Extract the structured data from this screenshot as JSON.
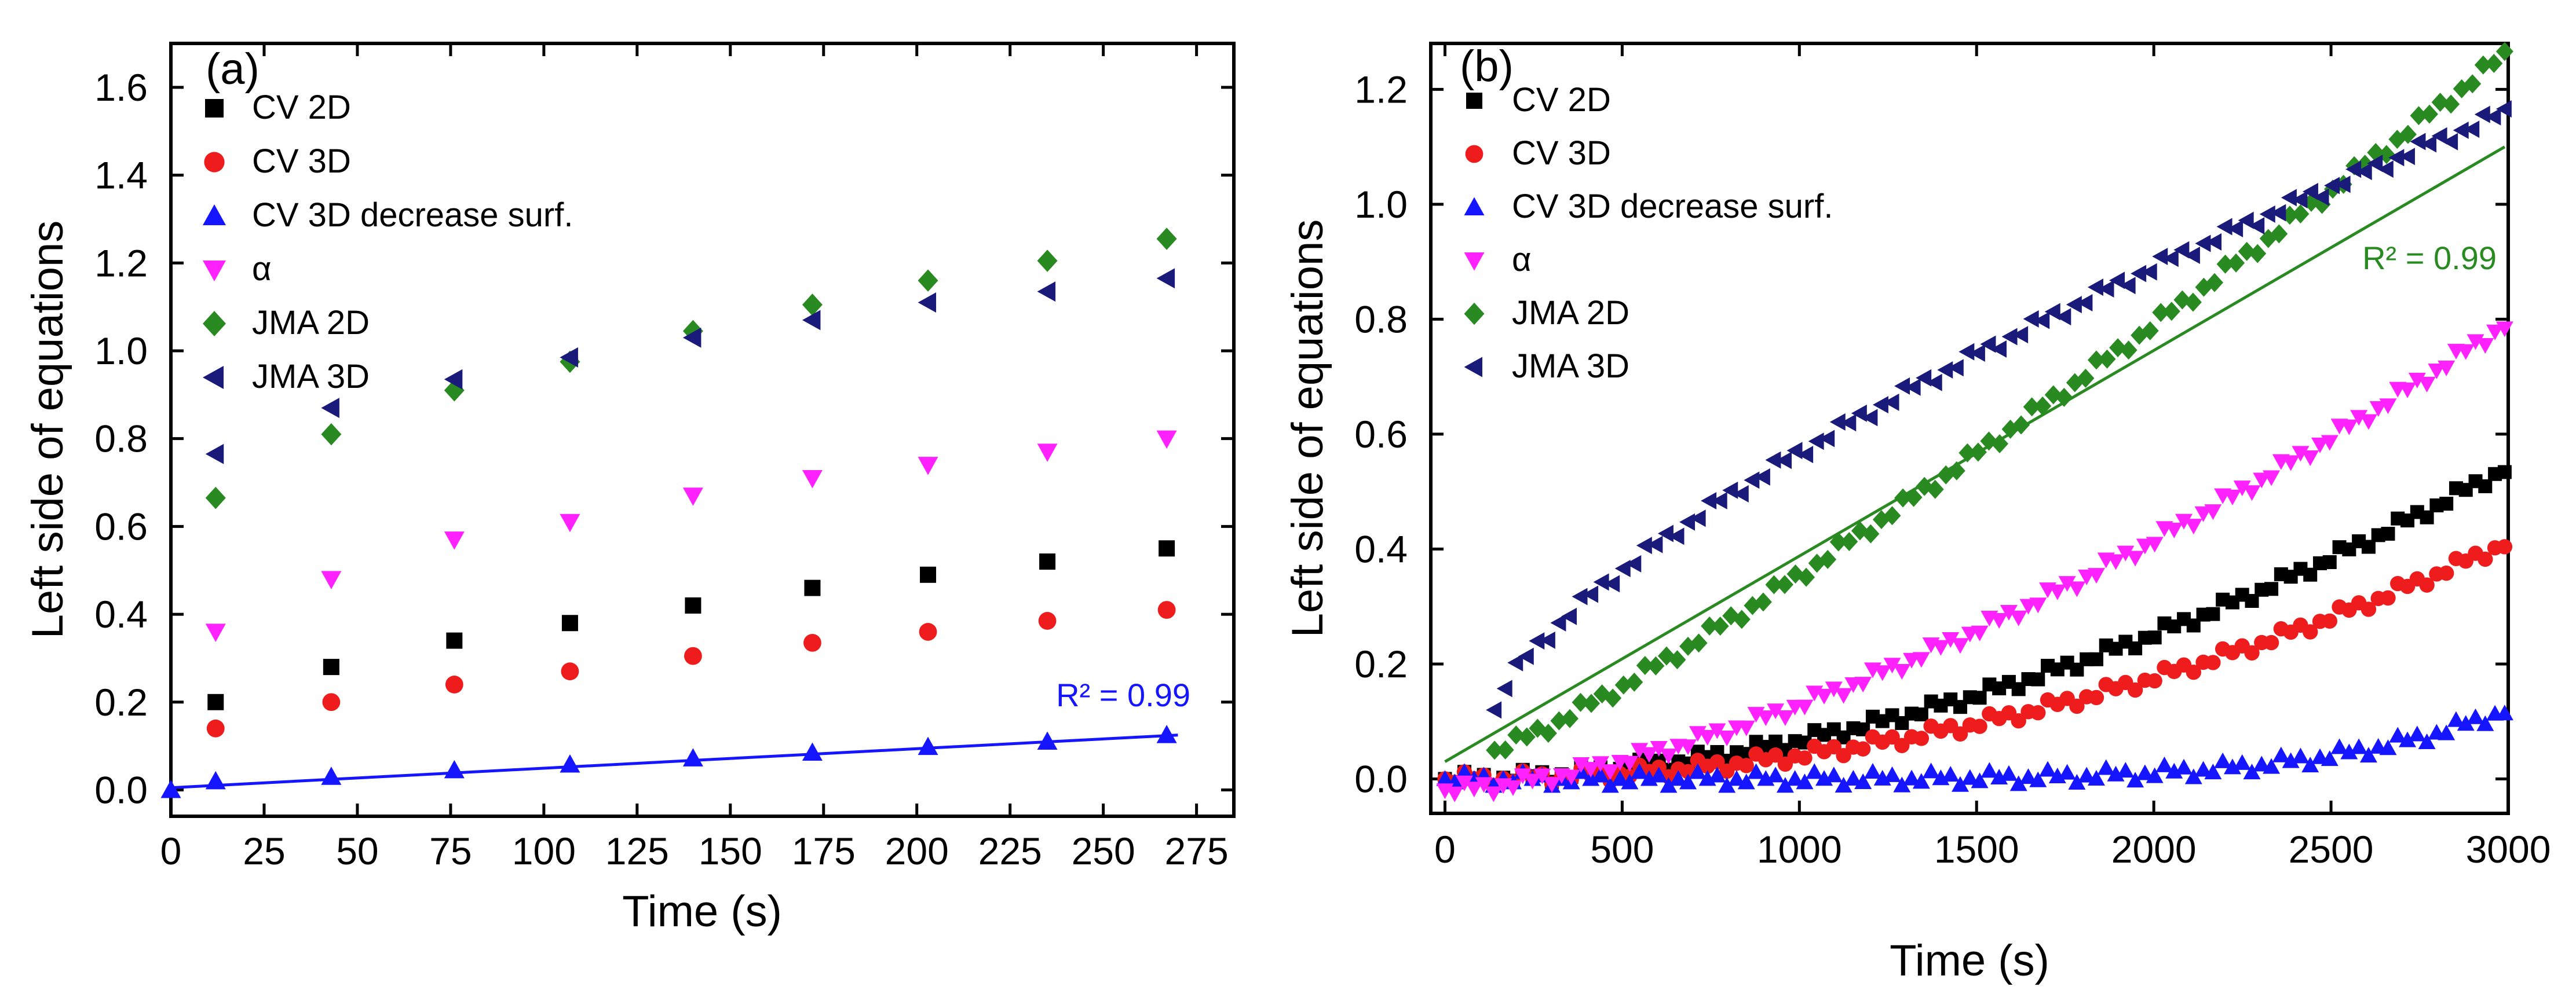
{
  "colors": {
    "cv2d": "#000000",
    "cv3d": "#ee1c1c",
    "cv3d_dec": "#1515ff",
    "alpha": "#ff22ff",
    "jma2d": "#2a8a22",
    "jma3d": "#1a1a7a"
  },
  "chart_data": [
    {
      "type": "scatter",
      "panel_label": "(a)",
      "xlabel": "Time (s)",
      "ylabel": "Left side of equations",
      "xlim": [
        0,
        285
      ],
      "ylim": [
        -0.06,
        1.7
      ],
      "xticks": [
        "0",
        "25",
        "50",
        "75",
        "100",
        "125",
        "150",
        "175",
        "200",
        "225",
        "250",
        "275"
      ],
      "yticks": [
        "0.0",
        "0.2",
        "0.4",
        "0.6",
        "0.8",
        "1.0",
        "1.2",
        "1.4",
        "1.6"
      ],
      "legend_position": "top-left",
      "x": [
        12,
        43,
        76,
        107,
        140,
        172,
        203,
        235,
        267
      ],
      "series": [
        {
          "name": "CV 2D",
          "marker": "square",
          "color_key": "cv2d",
          "values": [
            0.2,
            0.28,
            0.34,
            0.38,
            0.42,
            0.46,
            0.49,
            0.52,
            0.55
          ]
        },
        {
          "name": "CV 3D",
          "marker": "circle",
          "color_key": "cv3d",
          "values": [
            0.14,
            0.2,
            0.24,
            0.27,
            0.305,
            0.335,
            0.36,
            0.385,
            0.41
          ]
        },
        {
          "name": "CV 3D decrease surf.",
          "marker": "triangle-up",
          "color_key": "cv3d_dec",
          "values": [
            0.02,
            0.03,
            0.045,
            0.058,
            0.072,
            0.085,
            0.098,
            0.11,
            0.125
          ],
          "extra_points": [
            [
              0,
              0.0
            ]
          ]
        },
        {
          "name": "α",
          "marker": "triangle-down",
          "color_key": "alpha",
          "values": [
            0.36,
            0.48,
            0.57,
            0.61,
            0.67,
            0.71,
            0.74,
            0.77,
            0.8
          ]
        },
        {
          "name": "JMA 2D",
          "marker": "diamond",
          "color_key": "jma2d",
          "values": [
            0.665,
            0.81,
            0.91,
            0.975,
            1.045,
            1.105,
            1.16,
            1.205,
            1.255
          ]
        },
        {
          "name": "JMA 3D",
          "marker": "triangle-left",
          "color_key": "jma3d",
          "values": [
            0.765,
            0.87,
            0.935,
            0.985,
            1.03,
            1.07,
            1.11,
            1.135,
            1.165
          ]
        }
      ],
      "fit": {
        "series": "CV 3D decrease surf.",
        "x": [
          0,
          270
        ],
        "y": [
          0.005,
          0.125
        ],
        "label": "R² = 0.99"
      }
    },
    {
      "type": "scatter",
      "panel_label": "(b)",
      "xlabel": "Time (s)",
      "ylabel": "Left side of equations",
      "xlim": [
        -40,
        3000
      ],
      "ylim": [
        -0.06,
        1.28
      ],
      "xticks": [
        "0",
        "500",
        "1000",
        "1500",
        "2000",
        "2500",
        "3000"
      ],
      "yticks": [
        "0.0",
        "0.2",
        "0.4",
        "0.6",
        "0.8",
        "1.0",
        "1.2"
      ],
      "legend_position": "top-left",
      "series": [
        {
          "name": "CV 2D",
          "marker": "square",
          "color_key": "cv2d",
          "start": [
            0,
            0.0
          ],
          "end": [
            2990,
            0.54
          ],
          "exp": 1.9,
          "count": 110
        },
        {
          "name": "CV 3D",
          "marker": "circle",
          "color_key": "cv3d",
          "start": [
            0,
            0.0
          ],
          "end": [
            2990,
            0.41
          ],
          "exp": 2.1,
          "count": 110
        },
        {
          "name": "CV 3D decrease surf.",
          "marker": "triangle-up",
          "color_key": "cv3d_dec",
          "start": [
            0,
            0.0
          ],
          "end": [
            2990,
            0.12
          ],
          "exp": 6.0,
          "count": 110
        },
        {
          "name": "α",
          "marker": "triangle-down",
          "color_key": "alpha",
          "start": [
            0,
            -0.02
          ],
          "end": [
            2990,
            0.79
          ],
          "exp": 1.55,
          "count": 110
        },
        {
          "name": "JMA 2D",
          "marker": "diamond",
          "color_key": "jma2d",
          "start": [
            140,
            0.05
          ],
          "end": [
            2990,
            1.26
          ],
          "exp": 1.15,
          "count": 95
        },
        {
          "name": "JMA 3D",
          "marker": "triangle-left",
          "color_key": "jma3d",
          "start": [
            140,
            0.12
          ],
          "end": [
            2990,
            1.16
          ],
          "exp": 0.7,
          "count": 95
        }
      ],
      "fit": {
        "series": "JMA 2D",
        "x": [
          0,
          2990
        ],
        "y": [
          0.03,
          1.1
        ],
        "label": "R² = 0.99"
      }
    }
  ]
}
